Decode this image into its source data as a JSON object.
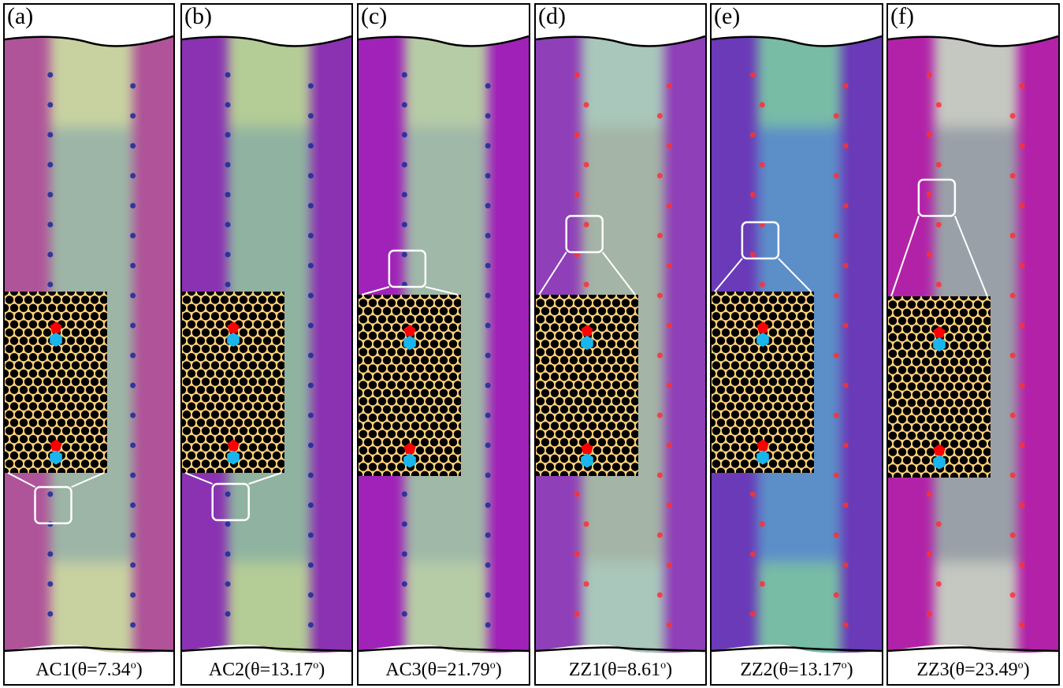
{
  "panels": [
    {
      "label": "(a)",
      "caption_text": "AC1(θ=7.34",
      "caption_sup": "o",
      "caption_end": ")",
      "colors": {
        "left": "#b0549a",
        "center": "#9cb5a6",
        "right": "#b0549a",
        "center_top": "#c8d2a0",
        "center_bottom": "#c8d2a0"
      }
    },
    {
      "label": "(b)",
      "caption_text": "AC2(θ=13.17",
      "caption_sup": "o",
      "caption_end": ")",
      "colors": {
        "left": "#8a32b2",
        "center": "#8fb3a0",
        "right": "#8a32b2",
        "center_top": "#b4cc96",
        "center_bottom": "#b4cc96"
      }
    },
    {
      "label": "(c)",
      "caption_text": "AC3(θ=21.79",
      "caption_sup": "o",
      "caption_end": ")",
      "colors": {
        "left": "#a022b8",
        "center": "#9fb8a8",
        "right": "#a022b8",
        "center_top": "#b6cca6",
        "center_bottom": "#b6cca6"
      }
    },
    {
      "label": "(d)",
      "caption_text": "ZZ1(θ=8.61",
      "caption_sup": "o",
      "caption_end": ")",
      "colors": {
        "left": "#8f3fb8",
        "center": "#a4b4a6",
        "right": "#8f3fb8",
        "center_top": "#a9c7ba",
        "center_bottom": "#a9c7ba"
      }
    },
    {
      "label": "(e)",
      "caption_text": "ZZ2(θ=13.17",
      "caption_sup": "o",
      "caption_end": ")",
      "colors": {
        "left": "#6a3ab8",
        "center": "#5c8ec8",
        "right": "#6a3ab8",
        "center_top": "#78bca6",
        "center_bottom": "#78bca6"
      }
    },
    {
      "label": "(f)",
      "caption_text": "ZZ3(θ=23.49",
      "caption_sup": "o",
      "caption_end": ")",
      "colors": {
        "left": "#b222a8",
        "center": "#9aa0a8",
        "right": "#b222a8",
        "center_top": "#c4c8c0",
        "center_bottom": "#c4c8c0"
      }
    }
  ],
  "defect_colors": {
    "pentagon": "#ff0000",
    "heptagon": "#19b6ee"
  }
}
